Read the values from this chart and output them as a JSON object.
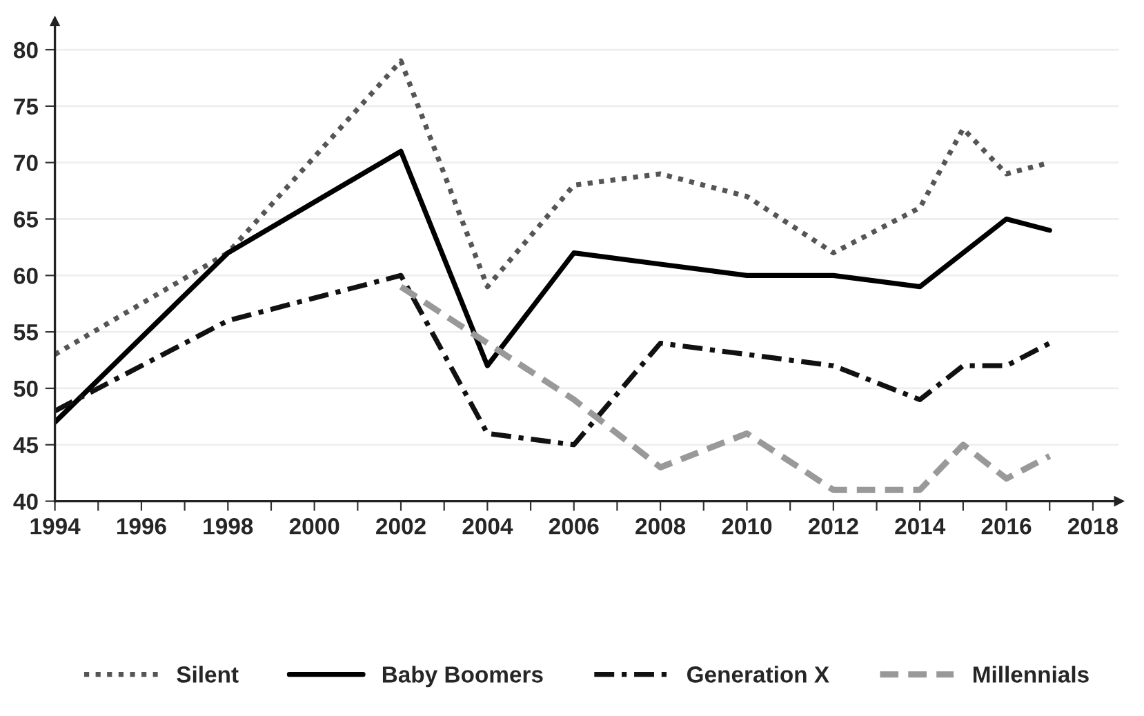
{
  "chart_data": {
    "type": "line",
    "x": [
      1994,
      1998,
      2002,
      2004,
      2006,
      2008,
      2010,
      2012,
      2014,
      2015,
      2016,
      2017
    ],
    "series": [
      {
        "name": "Silent",
        "color": "#555555",
        "line_style": "dotted",
        "values": [
          53,
          62,
          79,
          59,
          68,
          69,
          67,
          62,
          66,
          73,
          69,
          70
        ]
      },
      {
        "name": "Baby Boomers",
        "color": "#000000",
        "line_style": "solid",
        "x": [
          1994,
          1998,
          2002,
          2004,
          2006,
          2008,
          2010,
          2012,
          2014,
          2016,
          2017
        ],
        "values": [
          47,
          62,
          71,
          52,
          62,
          61,
          60,
          60,
          59,
          65,
          64
        ]
      },
      {
        "name": "Generation X",
        "color": "#111111",
        "line_style": "dashdot",
        "values": [
          48,
          56,
          60,
          46,
          45,
          54,
          53,
          52,
          49,
          52,
          52,
          54
        ]
      },
      {
        "name": "Millennials",
        "color": "#999999",
        "line_style": "dashed",
        "values": [
          null,
          null,
          59,
          54,
          49,
          43,
          46,
          41,
          41,
          45,
          42,
          44
        ]
      }
    ],
    "xlim": [
      1994,
      2018.6
    ],
    "ylim": [
      40,
      82.5
    ],
    "xticks": [
      1994,
      {
        "value": 1995,
        "label": null
      },
      1996,
      {
        "value": 1997,
        "label": null
      },
      1998,
      {
        "value": 1999,
        "label": null
      },
      2000,
      {
        "value": 2001,
        "label": null
      },
      2002,
      {
        "value": 2003,
        "label": null
      },
      2004,
      {
        "value": 2005,
        "label": null
      },
      2006,
      {
        "value": 2007,
        "label": null
      },
      2008,
      {
        "value": 2009,
        "label": null
      },
      2010,
      {
        "value": 2011,
        "label": null
      },
      2012,
      {
        "value": 2013,
        "label": null
      },
      2014,
      {
        "value": 2015,
        "label": null
      },
      2016,
      {
        "value": 2017,
        "label": null
      },
      2018
    ],
    "yticks": [
      40,
      45,
      50,
      55,
      60,
      65,
      70,
      75,
      80
    ],
    "grid": "y",
    "legend": "bottom"
  }
}
